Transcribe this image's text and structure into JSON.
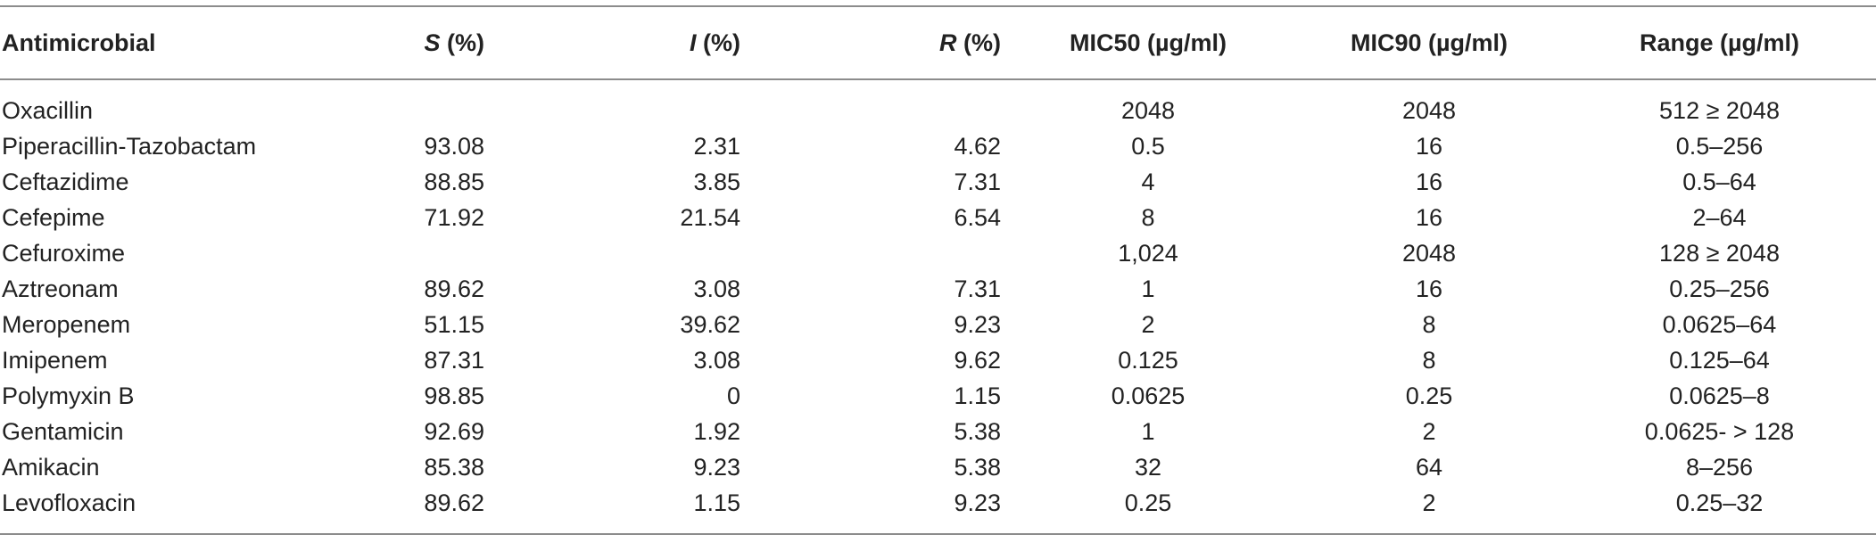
{
  "table": {
    "headers": {
      "antimicrobial": "Antimicrobial",
      "s_letter": "S",
      "s_rest": " (%)",
      "i_letter": "I",
      "i_rest": " (%)",
      "r_letter": "R",
      "r_rest": " (%)",
      "mic50": "MIC50 (µg/ml)",
      "mic90": "MIC90 (µg/ml)",
      "range": "Range (µg/ml)"
    },
    "rows": [
      {
        "antimicrobial": "Oxacillin",
        "s": "",
        "i": "",
        "r": "",
        "mic50": "2048",
        "mic90": "2048",
        "range": "512 ≥ 2048"
      },
      {
        "antimicrobial": "Piperacillin-Tazobactam",
        "s": "93.08",
        "i": "2.31",
        "r": "4.62",
        "mic50": "0.5",
        "mic90": "16",
        "range": "0.5–256"
      },
      {
        "antimicrobial": "Ceftazidime",
        "s": "88.85",
        "i": "3.85",
        "r": "7.31",
        "mic50": "4",
        "mic90": "16",
        "range": "0.5–64"
      },
      {
        "antimicrobial": "Cefepime",
        "s": "71.92",
        "i": "21.54",
        "r": "6.54",
        "mic50": "8",
        "mic90": "16",
        "range": "2–64"
      },
      {
        "antimicrobial": "Cefuroxime",
        "s": "",
        "i": "",
        "r": "",
        "mic50": "1,024",
        "mic90": "2048",
        "range": "128 ≥ 2048"
      },
      {
        "antimicrobial": "Aztreonam",
        "s": "89.62",
        "i": "3.08",
        "r": "7.31",
        "mic50": "1",
        "mic90": "16",
        "range": "0.25–256"
      },
      {
        "antimicrobial": "Meropenem",
        "s": "51.15",
        "i": "39.62",
        "r": "9.23",
        "mic50": "2",
        "mic90": "8",
        "range": "0.0625–64"
      },
      {
        "antimicrobial": "Imipenem",
        "s": "87.31",
        "i": "3.08",
        "r": "9.62",
        "mic50": "0.125",
        "mic90": "8",
        "range": "0.125–64"
      },
      {
        "antimicrobial": "Polymyxin B",
        "s": "98.85",
        "i": "0",
        "r": "1.15",
        "mic50": "0.0625",
        "mic90": "0.25",
        "range": "0.0625–8"
      },
      {
        "antimicrobial": "Gentamicin",
        "s": "92.69",
        "i": "1.92",
        "r": "5.38",
        "mic50": "1",
        "mic90": "2",
        "range": "0.0625- > 128"
      },
      {
        "antimicrobial": "Amikacin",
        "s": "85.38",
        "i": "9.23",
        "r": "5.38",
        "mic50": "32",
        "mic90": "64",
        "range": "8–256"
      },
      {
        "antimicrobial": "Levofloxacin",
        "s": "89.62",
        "i": "1.15",
        "r": "9.23",
        "mic50": "0.25",
        "mic90": "2",
        "range": "0.25–32"
      }
    ]
  }
}
